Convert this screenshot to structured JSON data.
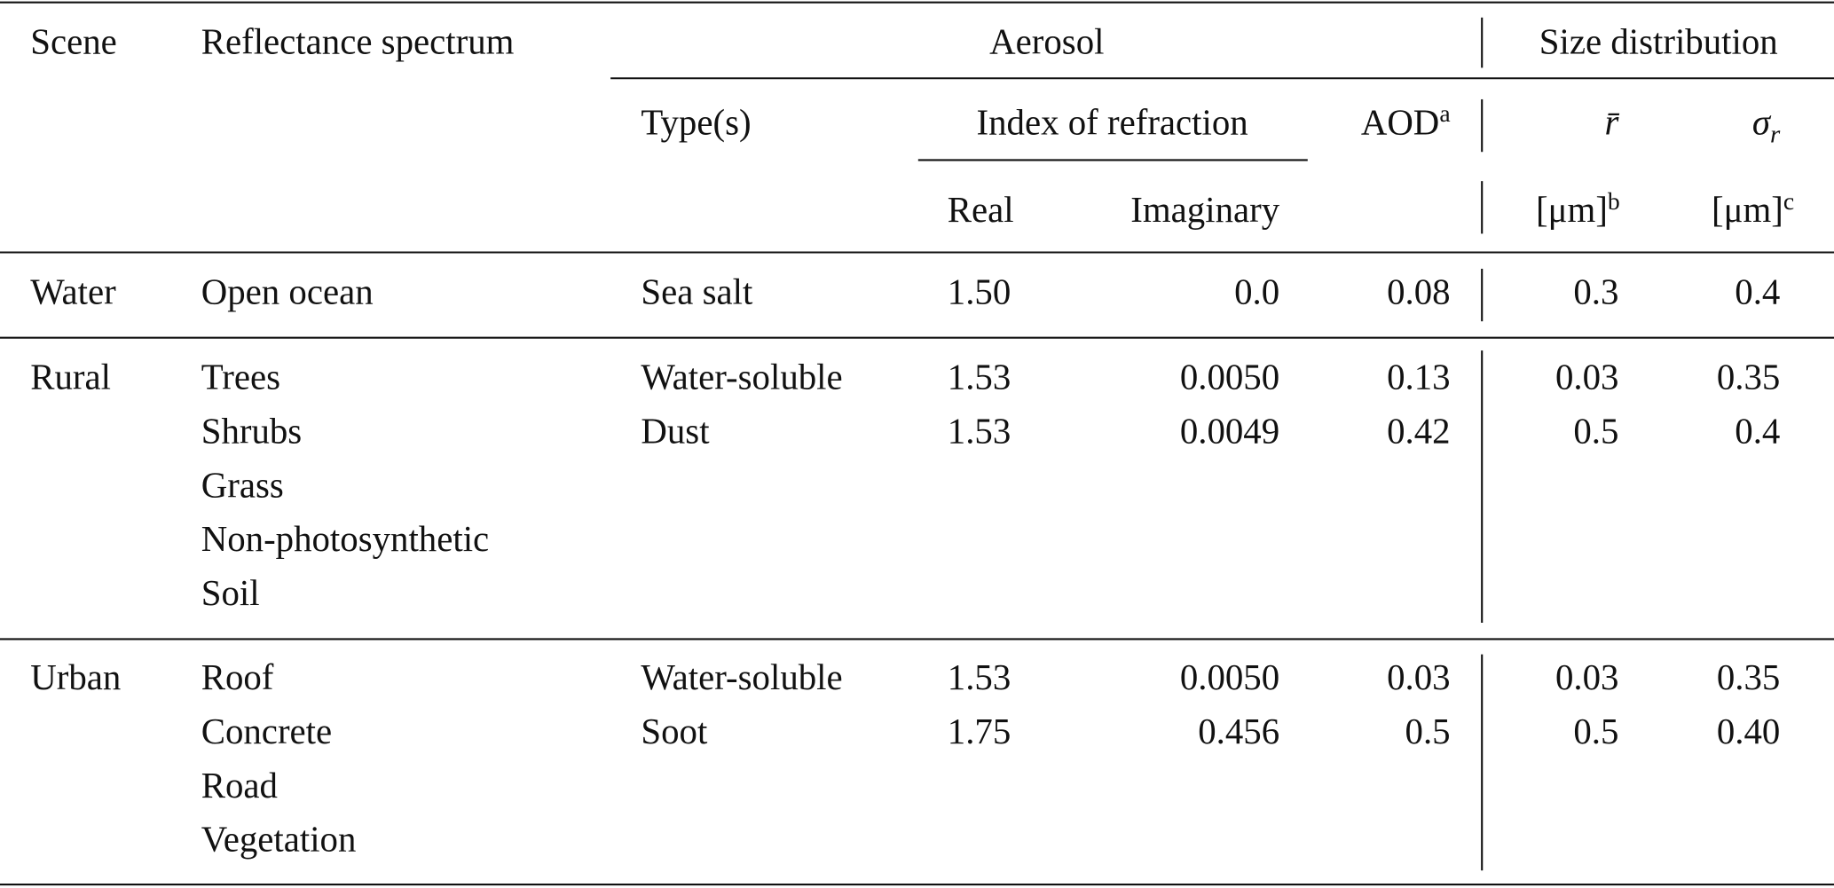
{
  "header": {
    "scene": "Scene",
    "spectrum": "Reflectance spectrum",
    "aerosol": "Aerosol",
    "size": "Size distribution",
    "types": "Type(s)",
    "index": "Index of refraction",
    "aod": {
      "text": "AOD",
      "note": "a"
    },
    "real": "Real",
    "imaginary": "Imaginary",
    "rbar": "r̄",
    "sigma": {
      "symbol": "σ",
      "sub": "r"
    },
    "unit_r": {
      "text": "[μm]",
      "note": "b"
    },
    "unit_sigma": {
      "text": "[μm]",
      "note": "c"
    }
  },
  "table": {
    "rows": [
      {
        "scene": "Water",
        "spectra": [
          "Open ocean"
        ],
        "aerosols": [
          {
            "type": "Sea salt",
            "real": "1.50",
            "imaginary": "0.0",
            "aod": "0.08",
            "r": "0.3",
            "sigma": "0.4"
          }
        ]
      },
      {
        "scene": "Rural",
        "spectra": [
          "Trees",
          "Shrubs",
          "Grass",
          "Non-photosynthetic",
          "Soil"
        ],
        "aerosols": [
          {
            "type": "Water-soluble",
            "real": "1.53",
            "imaginary": "0.0050",
            "aod": "0.13",
            "r": "0.03",
            "sigma": "0.35"
          },
          {
            "type": "Dust",
            "real": "1.53",
            "imaginary": "0.0049",
            "aod": "0.42",
            "r": "0.5",
            "sigma": "0.4"
          }
        ]
      },
      {
        "scene": "Urban",
        "spectra": [
          "Roof",
          "Concrete",
          "Road",
          "Vegetation"
        ],
        "aerosols": [
          {
            "type": "Water-soluble",
            "real": "1.53",
            "imaginary": "0.0050",
            "aod": "0.03",
            "r": "0.03",
            "sigma": "0.35"
          },
          {
            "type": "Soot",
            "real": "1.75",
            "imaginary": "0.456",
            "aod": "0.5",
            "r": "0.5",
            "sigma": "0.40"
          }
        ]
      }
    ]
  }
}
